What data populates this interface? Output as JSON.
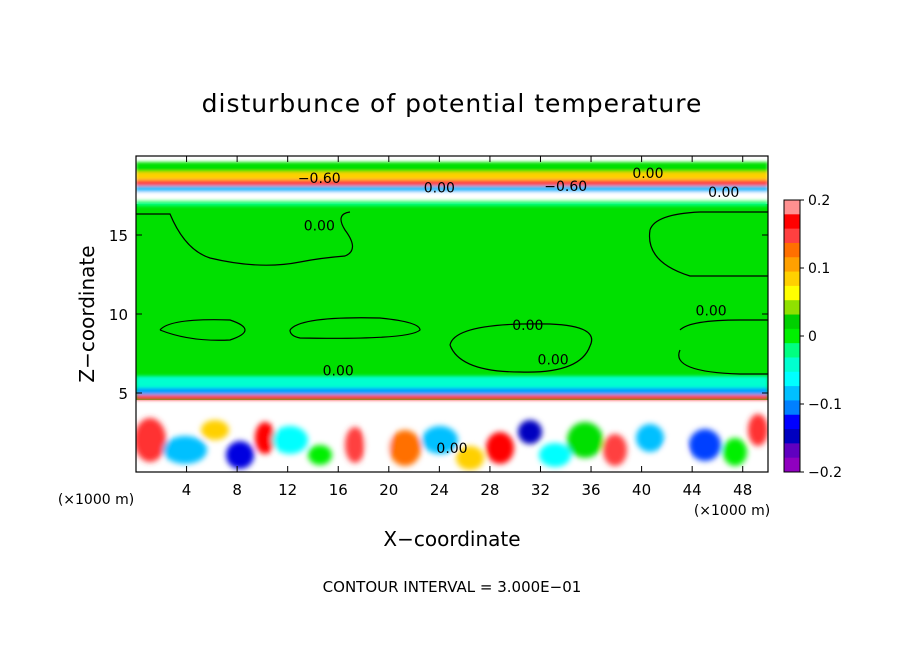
{
  "chart_data": {
    "type": "heatmap",
    "title": "disturbunce of potential temperature",
    "xlabel": "X−coordinate",
    "ylabel": "Z−coordinate",
    "x_unit_label": "(×1000 m)",
    "y_unit_label": "(×1000 m)",
    "footer": "CONTOUR INTERVAL = 3.000E−01",
    "xlim": [
      0,
      50
    ],
    "ylim": [
      0,
      20
    ],
    "x_ticks": [
      {
        "value": 4,
        "label": "4"
      },
      {
        "value": 8,
        "label": "8"
      },
      {
        "value": 12,
        "label": "12"
      },
      {
        "value": 16,
        "label": "16"
      },
      {
        "value": 20,
        "label": "20"
      },
      {
        "value": 24,
        "label": "24"
      },
      {
        "value": 28,
        "label": "28"
      },
      {
        "value": 32,
        "label": "32"
      },
      {
        "value": 36,
        "label": "36"
      },
      {
        "value": 40,
        "label": "40"
      },
      {
        "value": 44,
        "label": "44"
      },
      {
        "value": 48,
        "label": "48"
      }
    ],
    "y_ticks": [
      {
        "value": 5,
        "label": "5"
      },
      {
        "value": 10,
        "label": "10"
      },
      {
        "value": 15,
        "label": "15"
      }
    ],
    "colorbar": {
      "min": -0.2,
      "max": 0.2,
      "ticks": [
        {
          "value": 0.2,
          "label": "0.2"
        },
        {
          "value": 0.1,
          "label": "0.1"
        },
        {
          "value": 0,
          "label": "0"
        },
        {
          "value": -0.1,
          "label": "−0.1"
        },
        {
          "value": -0.2,
          "label": "−0.2"
        }
      ],
      "colors": [
        "#ff9090",
        "#ff0000",
        "#ff4040",
        "#ff7000",
        "#ffa000",
        "#ffd000",
        "#ffff00",
        "#90e000",
        "#00d000",
        "#00f000",
        "#00ff80",
        "#00ffd0",
        "#00ffff",
        "#00c0ff",
        "#0080ff",
        "#0000ff",
        "#0000c0",
        "#6000c0",
        "#9000c0"
      ]
    },
    "layers": [
      {
        "z_from": 0,
        "z_to": 4.5,
        "anomaly": "mixed",
        "value_range": [
          -0.2,
          0.2
        ]
      },
      {
        "z_from": 4.5,
        "z_to": 5.2,
        "anomaly": "strong",
        "value_range": [
          -0.2,
          0.2
        ]
      },
      {
        "z_from": 5.2,
        "z_to": 17,
        "anomaly": "near-zero",
        "value_range": [
          -0.05,
          0.02
        ]
      },
      {
        "z_from": 17,
        "z_to": 20,
        "anomaly": "mixed",
        "value_range": [
          -0.2,
          0.2
        ]
      }
    ],
    "contour_labels": [
      {
        "x": 14.5,
        "z": 18.3,
        "text": "−0.60"
      },
      {
        "x": 24.0,
        "z": 17.7,
        "text": "0.00"
      },
      {
        "x": 34.0,
        "z": 17.8,
        "text": "−0.60"
      },
      {
        "x": 40.5,
        "z": 18.6,
        "text": "0.00"
      },
      {
        "x": 46.5,
        "z": 17.4,
        "text": "0.00"
      },
      {
        "x": 14.5,
        "z": 15.3,
        "text": "0.00"
      },
      {
        "x": 31.0,
        "z": 9.0,
        "text": "0.00"
      },
      {
        "x": 45.5,
        "z": 9.9,
        "text": "0.00"
      },
      {
        "x": 33.0,
        "z": 6.8,
        "text": "0.00"
      },
      {
        "x": 16.0,
        "z": 6.1,
        "text": "0.00"
      },
      {
        "x": 25.0,
        "z": 1.2,
        "text": "0.00"
      }
    ],
    "grid": false,
    "legend": "right"
  }
}
